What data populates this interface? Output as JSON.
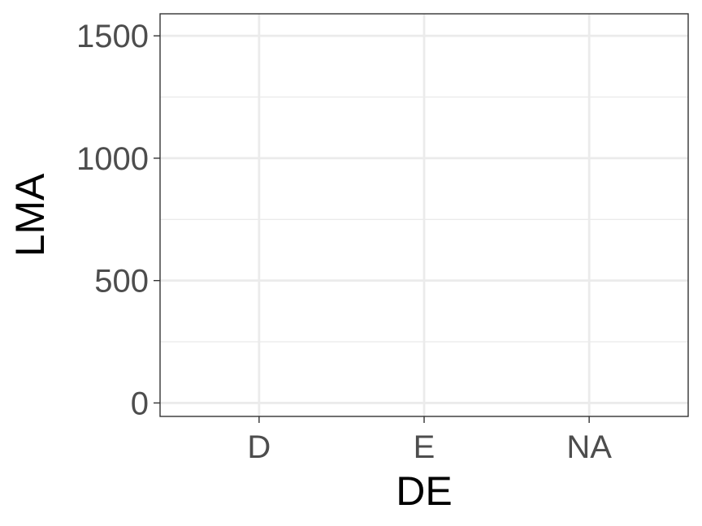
{
  "chart_data": {
    "type": "scatter",
    "categories": [
      "D",
      "E",
      "NA"
    ],
    "xlabel": "DE",
    "ylabel": "LMA",
    "ylim": [
      -55,
      1590
    ],
    "yticks": [
      0,
      500,
      1000,
      1500
    ],
    "ytick_labels": [
      "0",
      "500",
      "1000",
      "1500"
    ],
    "y_minor_ticks": [
      250,
      750,
      1250
    ],
    "series": [],
    "grid": true,
    "colors": {
      "grid": "#ebebeb",
      "panel_border": "#333333",
      "tick_text": "#4d4d4d",
      "title_text": "#000000",
      "background": "#ffffff"
    }
  }
}
